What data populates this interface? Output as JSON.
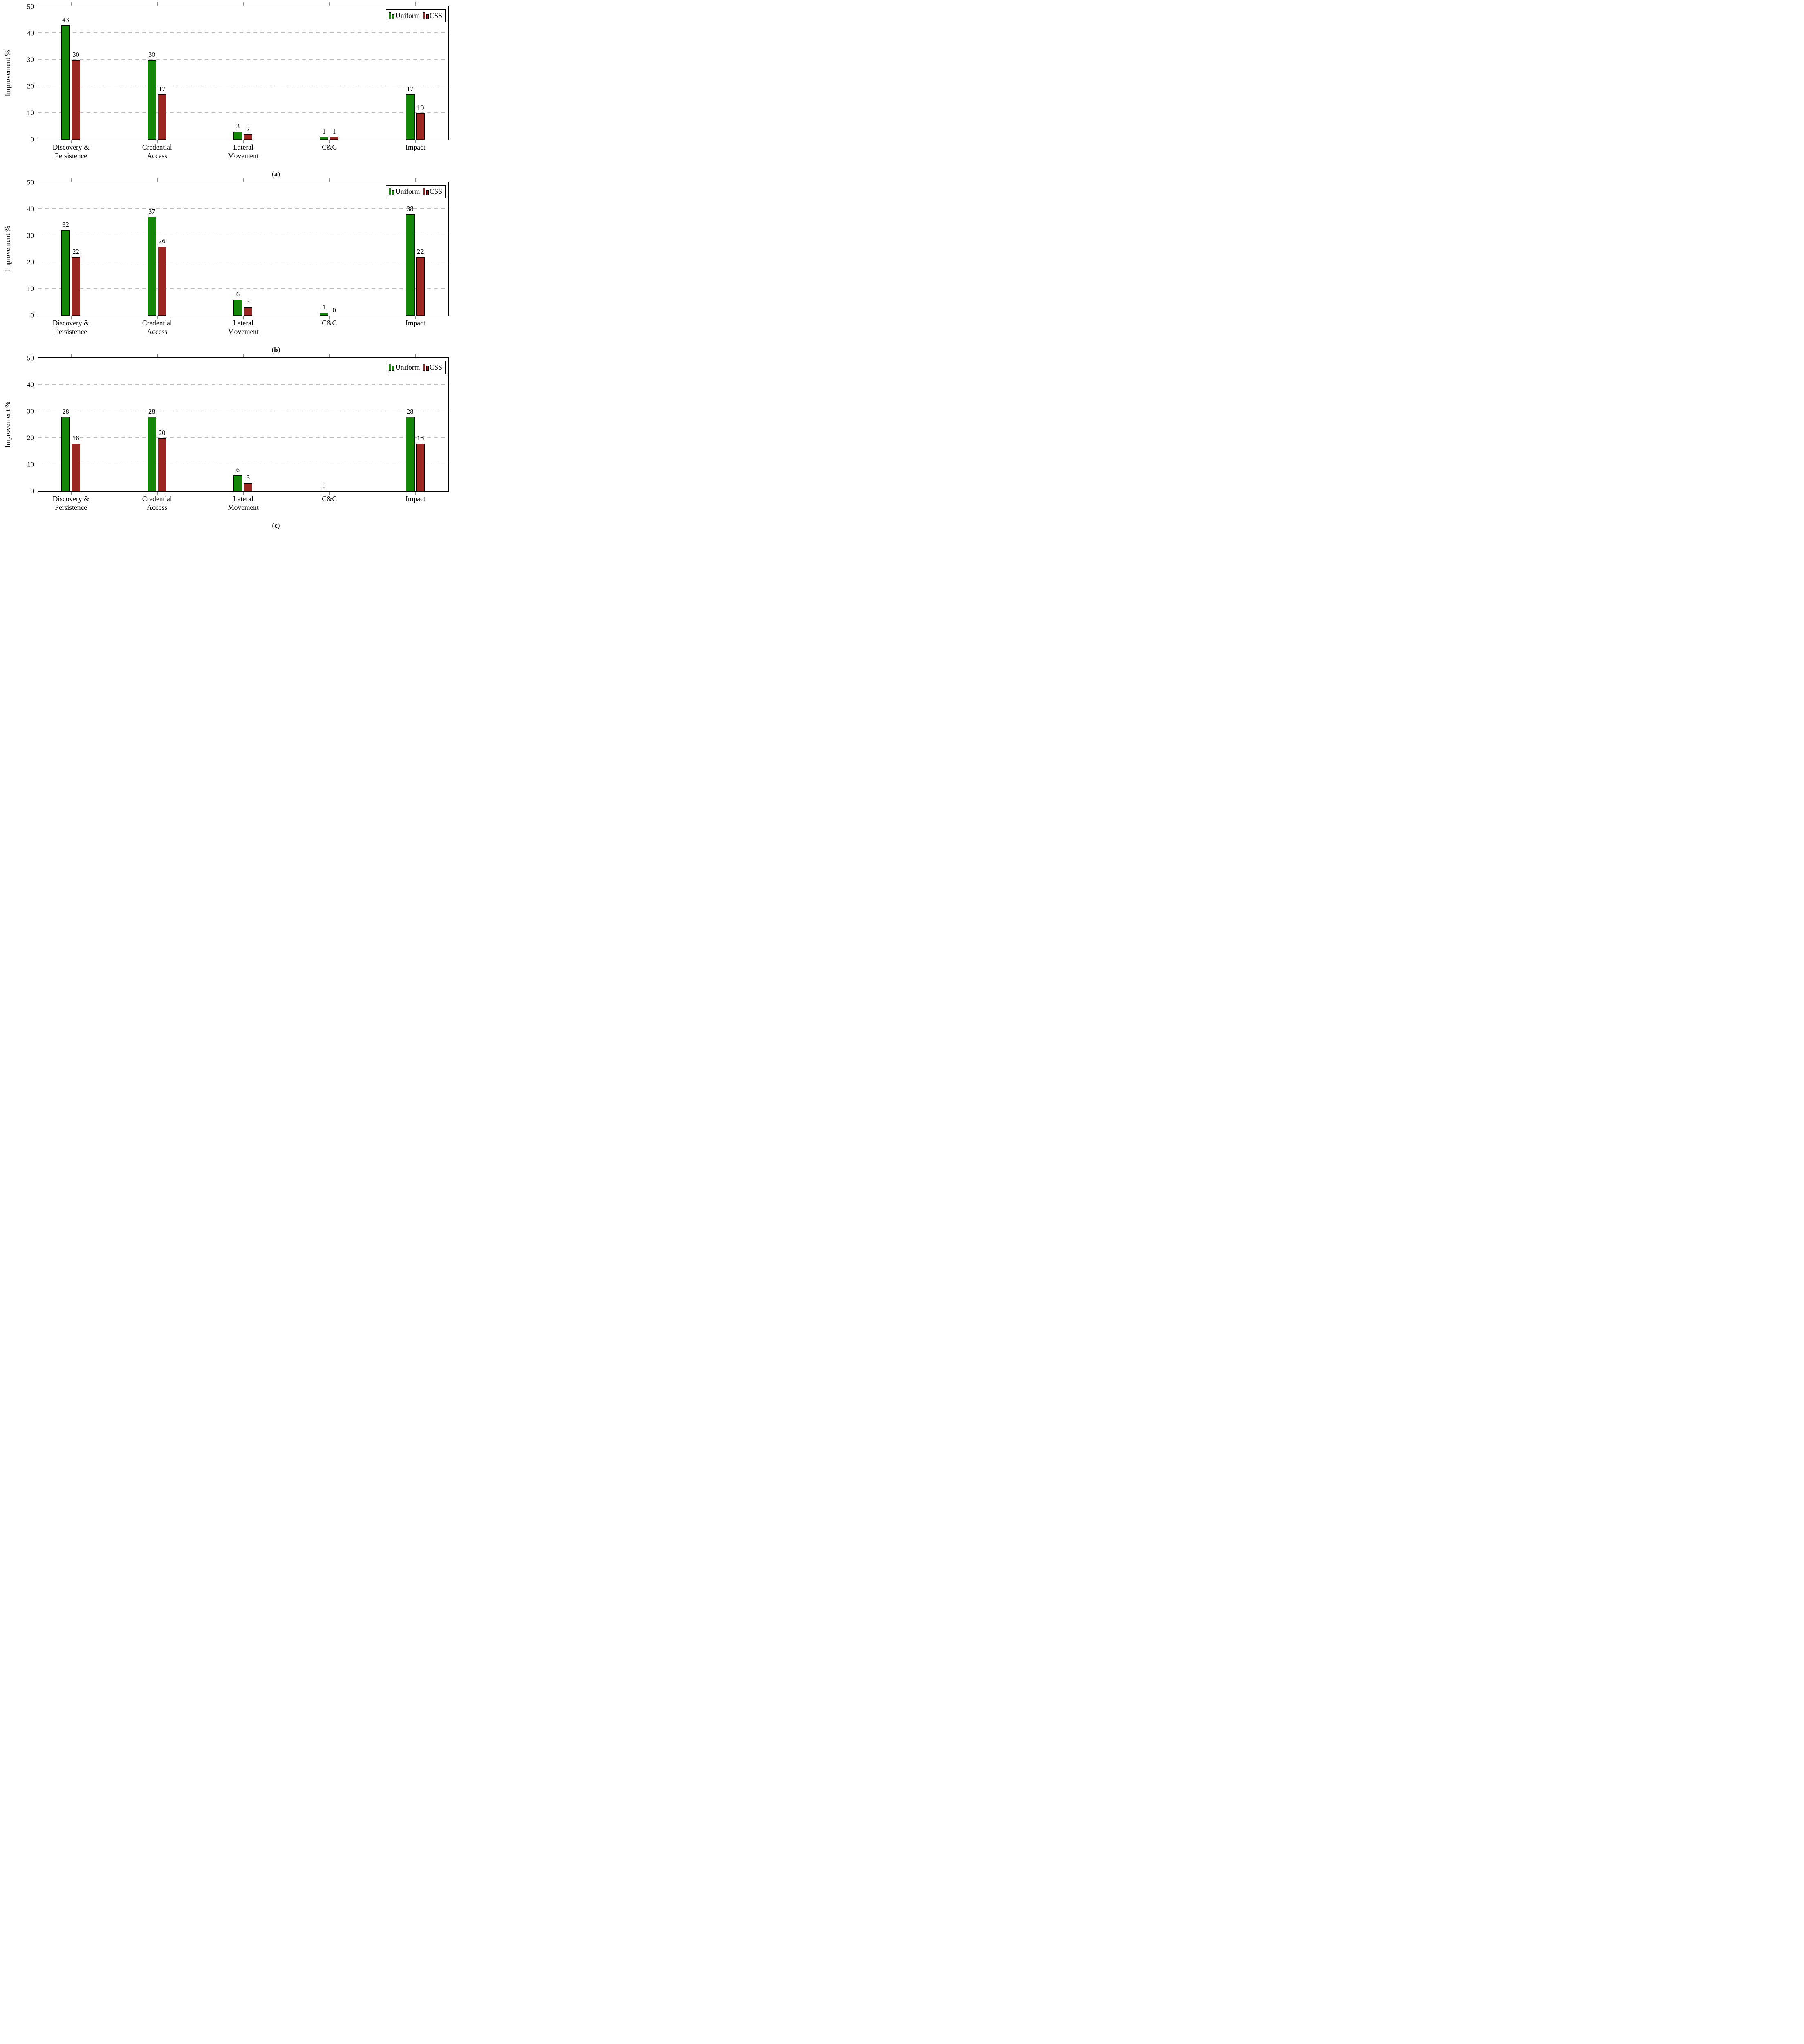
{
  "figure": {
    "ylabel": "Improvement %",
    "ylim": [
      0,
      50
    ],
    "yticks": [
      0,
      10,
      20,
      30,
      40,
      50
    ],
    "gridlines": [
      10,
      20,
      30,
      40
    ],
    "grid_style": "dashed",
    "legend_position": "top-right",
    "legend": [
      {
        "label": "Uniform",
        "color": "#148708"
      },
      {
        "label": "CSS",
        "color": "#9B2722"
      }
    ],
    "categories": [
      {
        "key": "discovery-persistence",
        "lines": [
          "Discovery &",
          "Persistence"
        ]
      },
      {
        "key": "credential-access",
        "lines": [
          "Credential",
          "Access"
        ]
      },
      {
        "key": "lateral-movement",
        "lines": [
          "Lateral",
          "Movement"
        ]
      },
      {
        "key": "cc",
        "lines": [
          "C&C"
        ]
      },
      {
        "key": "impact",
        "lines": [
          "Impact"
        ]
      }
    ],
    "colors": {
      "uniform": "#148708",
      "css": "#9B2722",
      "frame": "#000000",
      "grid": "#bdbdbd",
      "tick": "#8a8a8a"
    }
  },
  "chart_data": [
    {
      "type": "bar",
      "id": "a",
      "caption_letter": "a",
      "xlabel": "",
      "ylabel": "Improvement %",
      "ylim": [
        0,
        50
      ],
      "categories": [
        "Discovery & Persistence",
        "Credential Access",
        "Lateral Movement",
        "C&C",
        "Impact"
      ],
      "series": [
        {
          "name": "Uniform",
          "color_key": "uniform",
          "values": [
            43,
            30,
            3,
            1,
            17
          ],
          "labels": [
            "43",
            "30",
            "3",
            "1",
            "17"
          ]
        },
        {
          "name": "CSS",
          "color_key": "css",
          "values": [
            30,
            17,
            2,
            1,
            10
          ],
          "labels": [
            "30",
            "17",
            "2",
            "1",
            "10"
          ]
        }
      ]
    },
    {
      "type": "bar",
      "id": "b",
      "caption_letter": "b",
      "xlabel": "",
      "ylabel": "Improvement %",
      "ylim": [
        0,
        50
      ],
      "categories": [
        "Discovery & Persistence",
        "Credential Access",
        "Lateral Movement",
        "C&C",
        "Impact"
      ],
      "series": [
        {
          "name": "Uniform",
          "color_key": "uniform",
          "values": [
            32,
            37,
            6,
            1,
            38
          ],
          "labels": [
            "32",
            "37",
            "6",
            "1",
            "38"
          ]
        },
        {
          "name": "CSS",
          "color_key": "css",
          "values": [
            22,
            26,
            3,
            0,
            22
          ],
          "labels": [
            "22",
            "26",
            "3",
            "0",
            "22"
          ]
        }
      ]
    },
    {
      "type": "bar",
      "id": "c",
      "caption_letter": "c",
      "xlabel": "",
      "ylabel": "Improvement %",
      "ylim": [
        0,
        50
      ],
      "categories": [
        "Discovery & Persistence",
        "Credential Access",
        "Lateral Movement",
        "C&C",
        "Impact"
      ],
      "series": [
        {
          "name": "Uniform",
          "color_key": "uniform",
          "values": [
            28,
            28,
            6,
            0,
            28
          ],
          "labels": [
            "28",
            "28",
            "6",
            "0",
            "28"
          ]
        },
        {
          "name": "CSS",
          "color_key": "css",
          "values": [
            18,
            20,
            3,
            0,
            18
          ],
          "labels": [
            "18",
            "20",
            "3",
            "",
            "18"
          ]
        }
      ]
    }
  ]
}
